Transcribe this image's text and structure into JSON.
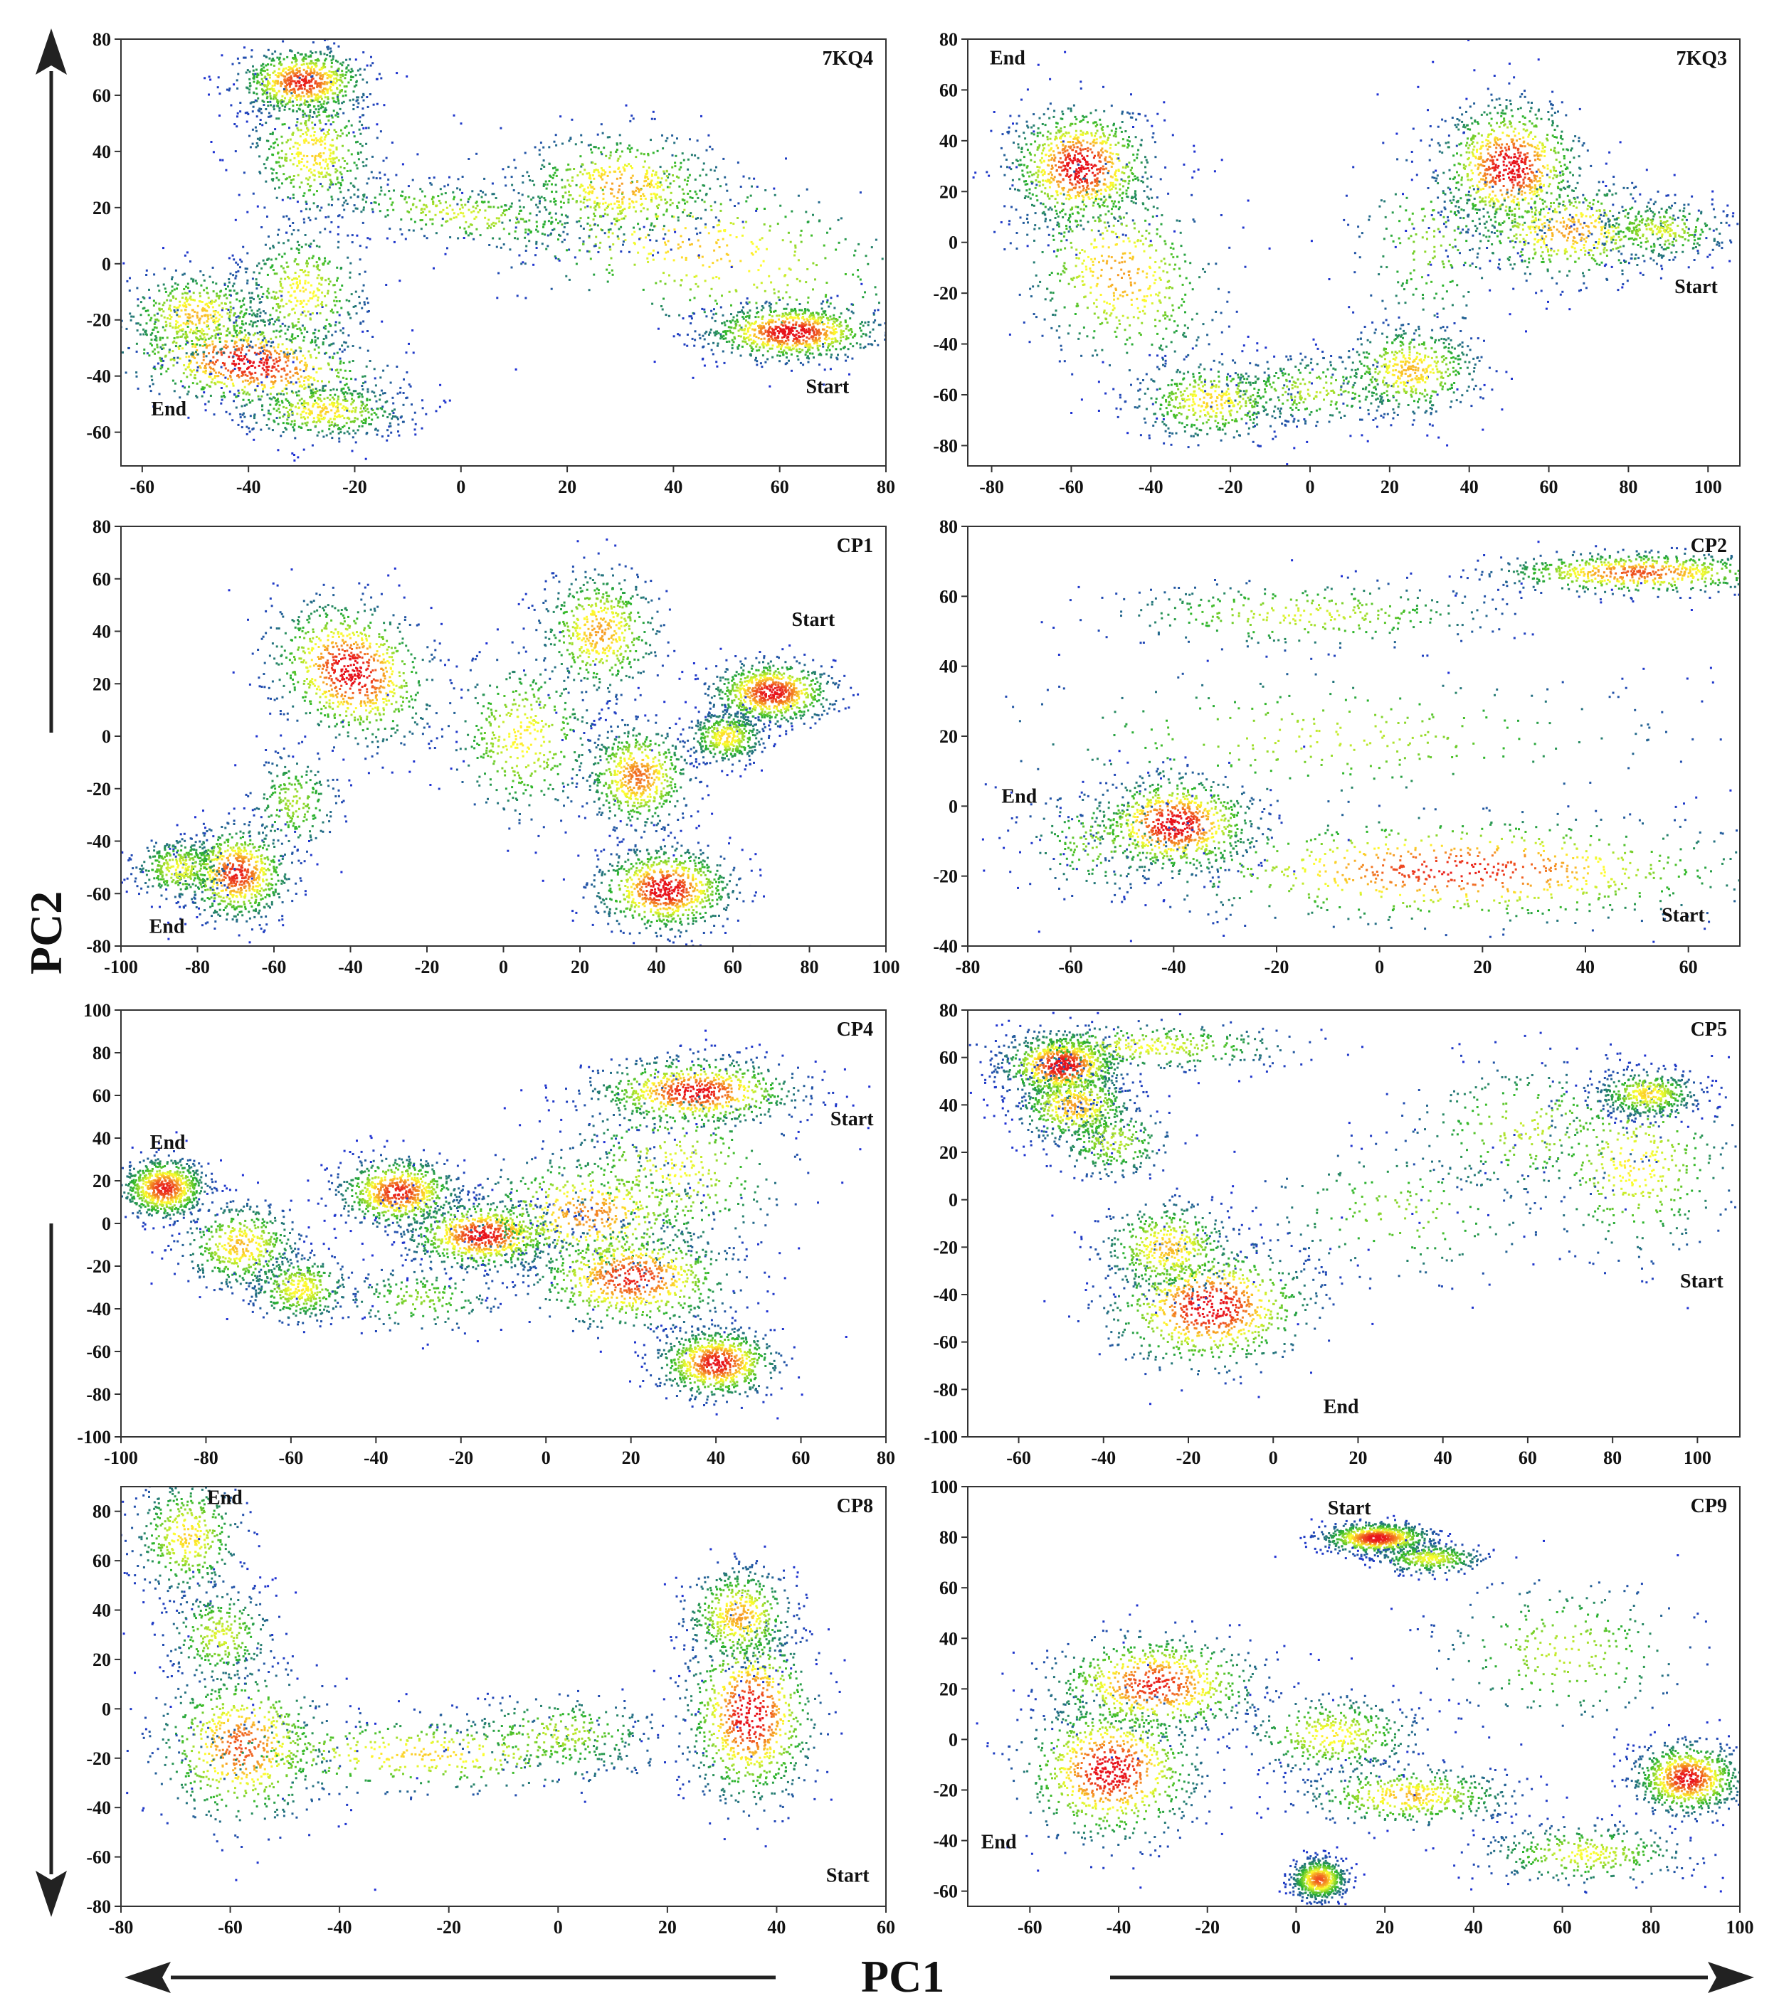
{
  "figure": {
    "pc1_label": "PC1",
    "pc2_label": "PC2",
    "arrow_color": "#222222",
    "colors": {
      "low": "#1f2fd6",
      "mid": "#2bb52b",
      "high": "#ffff2e",
      "peak": "#e8141c"
    }
  },
  "chart_data": [
    {
      "type": "scatter",
      "title": "7KQ4",
      "xlim": [
        -64,
        80
      ],
      "ylim": [
        -72,
        80
      ],
      "xticks": [
        -60,
        -40,
        -20,
        0,
        20,
        40,
        60,
        80
      ],
      "yticks": [
        -60,
        -40,
        -20,
        0,
        20,
        40,
        60,
        80
      ],
      "annotations": [
        {
          "text": "End",
          "x": -55,
          "y": -54
        },
        {
          "text": "Start",
          "x": 69,
          "y": -46
        }
      ],
      "clusters": [
        {
          "x": 45,
          "y": 6,
          "sx": 25,
          "sy": 14,
          "d": 0.52,
          "r": -0.55
        },
        {
          "x": 62,
          "y": -24,
          "sx": 8,
          "sy": 5,
          "d": 0.95,
          "r": 0
        },
        {
          "x": 30,
          "y": 28,
          "sx": 10,
          "sy": 10,
          "d": 0.6,
          "r": 0
        },
        {
          "x": 0,
          "y": 18,
          "sx": 14,
          "sy": 5,
          "d": 0.35,
          "r": -0.3
        },
        {
          "x": -40,
          "y": -35,
          "sx": 13,
          "sy": 8,
          "d": 0.9,
          "r": -0.4
        },
        {
          "x": -50,
          "y": -18,
          "sx": 7,
          "sy": 8,
          "d": 0.55,
          "r": 0
        },
        {
          "x": -30,
          "y": -10,
          "sx": 6,
          "sy": 12,
          "d": 0.45,
          "r": 0
        },
        {
          "x": -30,
          "y": 65,
          "sx": 6,
          "sy": 6,
          "d": 0.85,
          "r": 0
        },
        {
          "x": -28,
          "y": 40,
          "sx": 6,
          "sy": 12,
          "d": 0.5,
          "r": 0
        },
        {
          "x": -26,
          "y": -52,
          "sx": 8,
          "sy": 5,
          "d": 0.5,
          "r": 0
        }
      ]
    },
    {
      "type": "scatter",
      "title": "7KQ3",
      "xlim": [
        -86,
        108
      ],
      "ylim": [
        -88,
        80
      ],
      "xticks": [
        -80,
        -60,
        -40,
        -20,
        0,
        20,
        40,
        60,
        80,
        100
      ],
      "yticks": [
        -80,
        -60,
        -40,
        -20,
        0,
        20,
        40,
        60,
        80
      ],
      "annotations": [
        {
          "text": "End",
          "x": -76,
          "y": 70
        },
        {
          "text": "Start",
          "x": 97,
          "y": -20
        }
      ],
      "clusters": [
        {
          "x": -58,
          "y": 30,
          "sx": 9,
          "sy": 12,
          "d": 0.95,
          "r": 0
        },
        {
          "x": -48,
          "y": -12,
          "sx": 12,
          "sy": 20,
          "d": 0.6,
          "r": 0.2
        },
        {
          "x": -25,
          "y": -62,
          "sx": 10,
          "sy": 8,
          "d": 0.5,
          "r": 0
        },
        {
          "x": 0,
          "y": -58,
          "sx": 12,
          "sy": 7,
          "d": 0.3,
          "r": 0
        },
        {
          "x": 25,
          "y": -50,
          "sx": 9,
          "sy": 9,
          "d": 0.55,
          "r": 0
        },
        {
          "x": 50,
          "y": 30,
          "sx": 9,
          "sy": 13,
          "d": 0.95,
          "r": 0
        },
        {
          "x": 65,
          "y": 5,
          "sx": 14,
          "sy": 10,
          "d": 0.6,
          "r": 0
        },
        {
          "x": 88,
          "y": 5,
          "sx": 9,
          "sy": 6,
          "d": 0.35,
          "r": 0
        },
        {
          "x": 30,
          "y": 0,
          "sx": 10,
          "sy": 20,
          "d": 0.2,
          "r": 0
        }
      ]
    },
    {
      "type": "scatter",
      "title": "CP1",
      "xlim": [
        -100,
        100
      ],
      "ylim": [
        -80,
        80
      ],
      "xticks": [
        -100,
        -80,
        -60,
        -40,
        -20,
        0,
        20,
        40,
        60,
        80,
        100
      ],
      "yticks": [
        -80,
        -60,
        -40,
        -20,
        0,
        20,
        40,
        60,
        80
      ],
      "annotations": [
        {
          "text": "Start",
          "x": 81,
          "y": 42
        },
        {
          "text": "End",
          "x": -88,
          "y": -75
        }
      ],
      "clusters": [
        {
          "x": -40,
          "y": 25,
          "sx": 10,
          "sy": 14,
          "d": 0.95,
          "r": 0.35
        },
        {
          "x": -70,
          "y": -52,
          "sx": 7,
          "sy": 9,
          "d": 0.85,
          "r": 0
        },
        {
          "x": -85,
          "y": -50,
          "sx": 6,
          "sy": 6,
          "d": 0.4,
          "r": 0
        },
        {
          "x": -55,
          "y": -25,
          "sx": 6,
          "sy": 10,
          "d": 0.25,
          "r": 0
        },
        {
          "x": 25,
          "y": 40,
          "sx": 8,
          "sy": 12,
          "d": 0.6,
          "r": 0
        },
        {
          "x": 5,
          "y": 0,
          "sx": 10,
          "sy": 16,
          "d": 0.45,
          "r": 0
        },
        {
          "x": 35,
          "y": -15,
          "sx": 7,
          "sy": 10,
          "d": 0.7,
          "r": 0
        },
        {
          "x": 42,
          "y": -58,
          "sx": 9,
          "sy": 8,
          "d": 0.95,
          "r": 0
        },
        {
          "x": 70,
          "y": 17,
          "sx": 8,
          "sy": 6,
          "d": 0.9,
          "r": 0
        },
        {
          "x": 58,
          "y": 0,
          "sx": 5,
          "sy": 5,
          "d": 0.5,
          "r": 0
        }
      ]
    },
    {
      "type": "scatter",
      "title": "CP2",
      "xlim": [
        -80,
        70
      ],
      "ylim": [
        -40,
        80
      ],
      "xticks": [
        -80,
        -60,
        -40,
        -20,
        0,
        20,
        40,
        60
      ],
      "yticks": [
        -40,
        -20,
        0,
        20,
        40,
        60,
        80
      ],
      "annotations": [
        {
          "text": "End",
          "x": -70,
          "y": 1
        },
        {
          "text": "Start",
          "x": 59,
          "y": -33
        }
      ],
      "clusters": [
        {
          "x": -40,
          "y": -5,
          "sx": 8,
          "sy": 7,
          "d": 0.95,
          "r": 0
        },
        {
          "x": 15,
          "y": -18,
          "sx": 30,
          "sy": 8,
          "d": 0.85,
          "r": 0
        },
        {
          "x": 50,
          "y": 67,
          "sx": 14,
          "sy": 3,
          "d": 0.75,
          "r": 0
        },
        {
          "x": -15,
          "y": 55,
          "sx": 20,
          "sy": 5,
          "d": 0.35,
          "r": 0
        },
        {
          "x": -10,
          "y": 20,
          "sx": 35,
          "sy": 10,
          "d": 0.3,
          "r": 0
        },
        {
          "x": -55,
          "y": -10,
          "sx": 8,
          "sy": 8,
          "d": 0.2,
          "r": 0
        }
      ]
    },
    {
      "type": "scatter",
      "title": "CP4",
      "xlim": [
        -100,
        80
      ],
      "ylim": [
        -100,
        100
      ],
      "xticks": [
        -100,
        -80,
        -60,
        -40,
        -20,
        0,
        20,
        40,
        60,
        80
      ],
      "yticks": [
        -100,
        -80,
        -60,
        -40,
        -20,
        0,
        20,
        40,
        60,
        80,
        100
      ],
      "annotations": [
        {
          "text": "Start",
          "x": 72,
          "y": 46
        },
        {
          "text": "End",
          "x": -89,
          "y": 35
        }
      ],
      "clusters": [
        {
          "x": -90,
          "y": 17,
          "sx": 5,
          "sy": 7,
          "d": 0.85,
          "r": 0
        },
        {
          "x": -72,
          "y": -10,
          "sx": 7,
          "sy": 10,
          "d": 0.55,
          "r": 0
        },
        {
          "x": -58,
          "y": -30,
          "sx": 6,
          "sy": 8,
          "d": 0.45,
          "r": 0
        },
        {
          "x": -35,
          "y": 15,
          "sx": 7,
          "sy": 8,
          "d": 0.85,
          "r": 0
        },
        {
          "x": -15,
          "y": -5,
          "sx": 9,
          "sy": 8,
          "d": 0.9,
          "r": 0
        },
        {
          "x": 10,
          "y": 5,
          "sx": 14,
          "sy": 15,
          "d": 0.65,
          "r": 0
        },
        {
          "x": 20,
          "y": -25,
          "sx": 12,
          "sy": 12,
          "d": 0.85,
          "r": 0
        },
        {
          "x": 35,
          "y": 62,
          "sx": 12,
          "sy": 8,
          "d": 0.9,
          "r": 0
        },
        {
          "x": 40,
          "y": -65,
          "sx": 7,
          "sy": 8,
          "d": 0.9,
          "r": 0
        },
        {
          "x": 30,
          "y": 25,
          "sx": 14,
          "sy": 20,
          "d": 0.4,
          "r": 0
        },
        {
          "x": -30,
          "y": -35,
          "sx": 10,
          "sy": 8,
          "d": 0.2,
          "r": 0
        }
      ]
    },
    {
      "type": "scatter",
      "title": "CP5",
      "xlim": [
        -72,
        110
      ],
      "ylim": [
        -100,
        80
      ],
      "xticks": [
        -60,
        -40,
        -20,
        0,
        20,
        40,
        60,
        80,
        100
      ],
      "yticks": [
        -100,
        -80,
        -60,
        -40,
        -20,
        0,
        20,
        40,
        60,
        80
      ],
      "annotations": [
        {
          "text": "Start",
          "x": 101,
          "y": -37
        },
        {
          "text": "End",
          "x": 16,
          "y": -90
        }
      ],
      "clusters": [
        {
          "x": -50,
          "y": 57,
          "sx": 7,
          "sy": 7,
          "d": 0.95,
          "r": 0
        },
        {
          "x": -47,
          "y": 40,
          "sx": 7,
          "sy": 8,
          "d": 0.6,
          "r": 0
        },
        {
          "x": -30,
          "y": 65,
          "sx": 18,
          "sy": 5,
          "d": 0.4,
          "r": 0
        },
        {
          "x": -38,
          "y": 25,
          "sx": 7,
          "sy": 8,
          "d": 0.3,
          "r": 0
        },
        {
          "x": -15,
          "y": -45,
          "sx": 12,
          "sy": 13,
          "d": 0.95,
          "r": -0.3
        },
        {
          "x": -25,
          "y": -20,
          "sx": 8,
          "sy": 10,
          "d": 0.55,
          "r": 0
        },
        {
          "x": 85,
          "y": 15,
          "sx": 12,
          "sy": 20,
          "d": 0.45,
          "r": 0
        },
        {
          "x": 60,
          "y": 30,
          "sx": 15,
          "sy": 15,
          "d": 0.3,
          "r": 0
        },
        {
          "x": 30,
          "y": -5,
          "sx": 18,
          "sy": 15,
          "d": 0.2,
          "r": -0.2
        },
        {
          "x": 88,
          "y": 45,
          "sx": 6,
          "sy": 5,
          "d": 0.5,
          "r": 0
        }
      ]
    },
    {
      "type": "scatter",
      "title": "CP8",
      "xlim": [
        -80,
        60
      ],
      "ylim": [
        -80,
        90
      ],
      "xticks": [
        -80,
        -60,
        -40,
        -20,
        0,
        20,
        40,
        60
      ],
      "yticks": [
        -80,
        -60,
        -40,
        -20,
        0,
        20,
        40,
        60,
        80
      ],
      "annotations": [
        {
          "text": "End",
          "x": -61,
          "y": 83
        },
        {
          "text": "Start",
          "x": 53,
          "y": -70
        }
      ],
      "clusters": [
        {
          "x": 35,
          "y": -2,
          "sx": 6,
          "sy": 18,
          "d": 0.95,
          "r": 0
        },
        {
          "x": 33,
          "y": 38,
          "sx": 5,
          "sy": 10,
          "d": 0.6,
          "r": 0
        },
        {
          "x": -58,
          "y": -15,
          "sx": 8,
          "sy": 16,
          "d": 0.75,
          "r": 0
        },
        {
          "x": -25,
          "y": -18,
          "sx": 22,
          "sy": 8,
          "d": 0.5,
          "r": 0
        },
        {
          "x": -68,
          "y": 70,
          "sx": 5,
          "sy": 12,
          "d": 0.5,
          "r": 0
        },
        {
          "x": -62,
          "y": 30,
          "sx": 5,
          "sy": 10,
          "d": 0.35,
          "r": 0
        },
        {
          "x": 0,
          "y": -10,
          "sx": 10,
          "sy": 8,
          "d": 0.3,
          "r": 0
        }
      ]
    },
    {
      "type": "scatter",
      "title": "CP9",
      "xlim": [
        -74,
        100
      ],
      "ylim": [
        -66,
        100
      ],
      "xticks": [
        -60,
        -40,
        -20,
        0,
        20,
        40,
        60,
        80,
        100
      ],
      "yticks": [
        -60,
        -40,
        -20,
        0,
        20,
        40,
        60,
        80,
        100
      ],
      "annotations": [
        {
          "text": "Start",
          "x": 12,
          "y": 89
        },
        {
          "text": "End",
          "x": -67,
          "y": -43
        }
      ],
      "clusters": [
        {
          "x": -42,
          "y": -12,
          "sx": 10,
          "sy": 14,
          "d": 0.95,
          "r": 0
        },
        {
          "x": -32,
          "y": 22,
          "sx": 12,
          "sy": 10,
          "d": 0.85,
          "r": 0
        },
        {
          "x": 18,
          "y": 80,
          "sx": 6,
          "sy": 3,
          "d": 0.9,
          "r": 0
        },
        {
          "x": 30,
          "y": 72,
          "sx": 6,
          "sy": 3,
          "d": 0.4,
          "r": 0
        },
        {
          "x": 5,
          "y": -55,
          "sx": 3,
          "sy": 4,
          "d": 0.75,
          "r": 0
        },
        {
          "x": 25,
          "y": -22,
          "sx": 12,
          "sy": 6,
          "d": 0.55,
          "r": 0
        },
        {
          "x": 8,
          "y": 2,
          "sx": 10,
          "sy": 8,
          "d": 0.45,
          "r": 0
        },
        {
          "x": 88,
          "y": -15,
          "sx": 6,
          "sy": 7,
          "d": 0.9,
          "r": 0
        },
        {
          "x": 60,
          "y": 35,
          "sx": 15,
          "sy": 15,
          "d": 0.3,
          "r": 0
        },
        {
          "x": 65,
          "y": -45,
          "sx": 12,
          "sy": 6,
          "d": 0.4,
          "r": 0
        }
      ]
    }
  ]
}
